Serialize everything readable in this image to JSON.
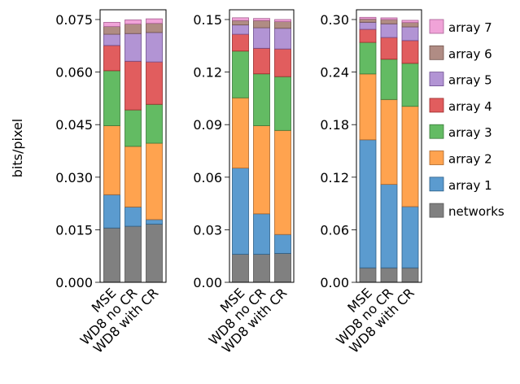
{
  "chart_data": [
    {
      "type": "bar",
      "stacked": true,
      "ylabel": "bits/pixel",
      "ylim": [
        0,
        0.0775
      ],
      "yticks": [
        "0.000",
        "0.015",
        "0.030",
        "0.045",
        "0.060",
        "0.075"
      ],
      "ytick_values": [
        0,
        0.015,
        0.03,
        0.045,
        0.06,
        0.075
      ],
      "categories": [
        "MSE",
        "WD8 no CR",
        "WD8 with CR"
      ],
      "series": [
        {
          "name": "networks",
          "values": [
            0.0155,
            0.016,
            0.0166
          ]
        },
        {
          "name": "array 1",
          "values": [
            0.0095,
            0.0055,
            0.0013
          ]
        },
        {
          "name": "array 2",
          "values": [
            0.0197,
            0.0173,
            0.0218
          ]
        },
        {
          "name": "array 3",
          "values": [
            0.0157,
            0.0104,
            0.0111
          ]
        },
        {
          "name": "array 4",
          "values": [
            0.0072,
            0.0139,
            0.0121
          ]
        },
        {
          "name": "array 5",
          "values": [
            0.0032,
            0.0079,
            0.0084
          ]
        },
        {
          "name": "array 6",
          "values": [
            0.0022,
            0.0027,
            0.0026
          ]
        },
        {
          "name": "array 7",
          "values": [
            0.0012,
            0.0012,
            0.0013
          ]
        }
      ]
    },
    {
      "type": "bar",
      "stacked": true,
      "ylim": [
        0,
        0.155
      ],
      "yticks": [
        "0.00",
        "0.03",
        "0.06",
        "0.09",
        "0.12",
        "0.15"
      ],
      "ytick_values": [
        0,
        0.03,
        0.06,
        0.09,
        0.12,
        0.15
      ],
      "categories": [
        "MSE",
        "WD8 no CR",
        "WD8 with CR"
      ],
      "series": [
        {
          "name": "networks",
          "values": [
            0.016,
            0.016,
            0.0165
          ]
        },
        {
          "name": "array 1",
          "values": [
            0.0492,
            0.0231,
            0.0108
          ]
        },
        {
          "name": "array 2",
          "values": [
            0.0401,
            0.0503,
            0.0594
          ]
        },
        {
          "name": "array 3",
          "values": [
            0.0267,
            0.0296,
            0.0307
          ]
        },
        {
          "name": "array 4",
          "values": [
            0.0096,
            0.0146,
            0.0158
          ]
        },
        {
          "name": "array 5",
          "values": [
            0.0053,
            0.0117,
            0.0118
          ]
        },
        {
          "name": "array 6",
          "values": [
            0.0025,
            0.0041,
            0.0038
          ]
        },
        {
          "name": "array 7",
          "values": [
            0.0016,
            0.0012,
            0.0012
          ]
        }
      ]
    },
    {
      "type": "bar",
      "stacked": true,
      "ylim": [
        0,
        0.31
      ],
      "yticks": [
        "0.00",
        "0.06",
        "0.12",
        "0.18",
        "0.24",
        "0.30"
      ],
      "ytick_values": [
        0,
        0.06,
        0.12,
        0.18,
        0.24,
        0.3
      ],
      "categories": [
        "MSE",
        "WD8 no CR",
        "WD8 with CR"
      ],
      "series": [
        {
          "name": "networks",
          "values": [
            0.0165,
            0.0165,
            0.0165
          ]
        },
        {
          "name": "array 1",
          "values": [
            0.1462,
            0.0953,
            0.0699
          ]
        },
        {
          "name": "array 2",
          "values": [
            0.0752,
            0.0969,
            0.1145
          ]
        },
        {
          "name": "array 3",
          "values": [
            0.036,
            0.046,
            0.0491
          ]
        },
        {
          "name": "array 4",
          "values": [
            0.0149,
            0.0248,
            0.026
          ]
        },
        {
          "name": "array 5",
          "values": [
            0.0081,
            0.0156,
            0.0156
          ]
        },
        {
          "name": "array 6",
          "values": [
            0.0037,
            0.0049,
            0.005
          ]
        },
        {
          "name": "array 7",
          "values": [
            0.0019,
            0.0019,
            0.0025
          ]
        }
      ]
    }
  ],
  "legend": {
    "placement": "right",
    "entries": [
      "array 7",
      "array 6",
      "array 5",
      "array 4",
      "array 3",
      "array 2",
      "array 1",
      "networks"
    ]
  },
  "colors": {
    "networks": "#808080",
    "array 1": "#5b9bcf",
    "array 2": "#ffa34f",
    "array 3": "#63bb63",
    "array 4": "#e15d5e",
    "array 5": "#b294d4",
    "array 6": "#b08c84",
    "array 7": "#f0a3d8"
  },
  "edge_colors": {
    "networks": "#555555",
    "array 1": "#2c5e86",
    "array 2": "#a9652c",
    "array 3": "#3a7a3a",
    "array 4": "#9a2a2b",
    "array 5": "#6c4d8e",
    "array 6": "#6f514a",
    "array 7": "#a85f93"
  },
  "grid": false
}
